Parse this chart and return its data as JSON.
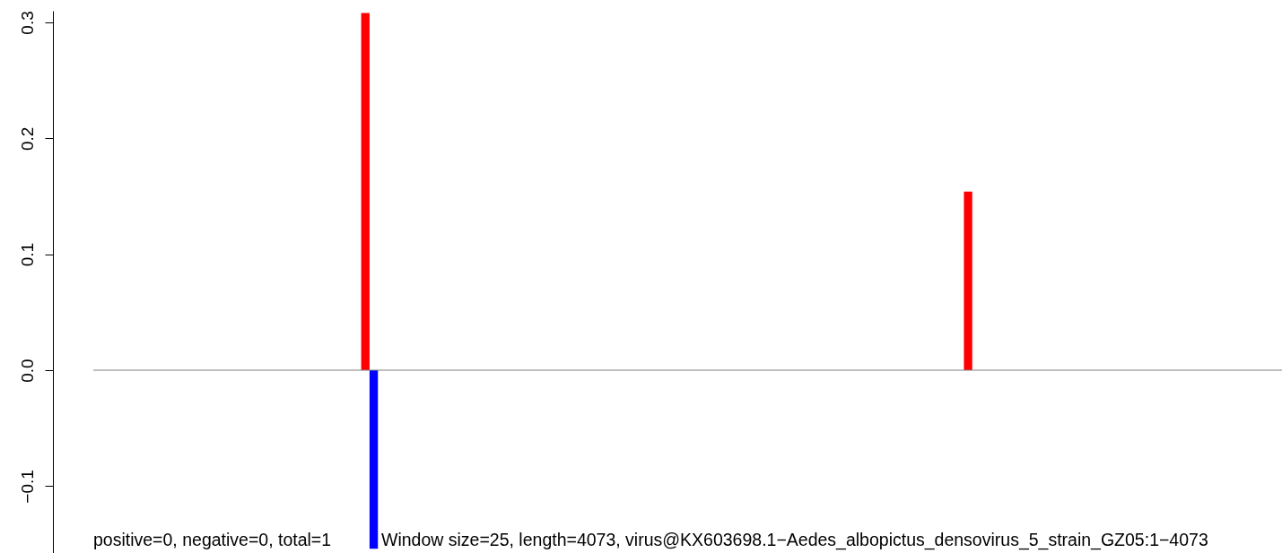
{
  "chart_data": {
    "type": "bar",
    "categories": [
      null,
      null,
      null,
      null,
      null,
      null,
      null,
      null,
      null,
      null,
      null,
      null,
      null,
      null,
      null,
      null,
      null,
      null,
      null,
      null,
      null,
      null,
      null,
      null,
      null,
      null,
      null,
      null,
      null,
      null,
      null,
      null,
      null,
      null,
      null,
      null,
      null,
      null,
      null,
      null,
      null,
      null,
      null,
      null,
      null,
      null,
      null,
      null,
      null,
      null,
      null,
      null,
      null,
      null,
      null,
      null,
      null,
      null,
      null,
      null,
      null,
      null,
      null,
      null,
      null,
      null,
      null,
      null,
      null,
      null,
      null,
      null,
      null,
      null,
      null,
      null,
      null,
      null,
      null,
      null,
      null,
      null,
      null,
      null,
      null,
      null,
      null,
      null,
      null,
      null,
      null,
      null,
      null,
      null,
      null,
      null,
      null,
      null,
      null,
      null,
      null,
      null,
      null,
      null,
      null,
      null,
      null,
      null,
      null,
      null,
      null,
      null,
      null,
      null,
      null,
      null,
      null,
      null,
      null,
      null,
      null,
      null,
      null,
      null,
      null,
      null,
      null,
      null,
      null,
      null,
      null,
      null,
      null,
      null,
      null,
      null,
      null,
      null,
      null,
      null,
      null,
      null
    ],
    "series": [
      {
        "color": "#ff0000",
        "values": [
          0,
          0,
          0,
          0,
          0,
          0,
          0,
          0,
          0,
          0,
          0,
          0,
          0,
          0,
          0,
          0,
          0,
          0,
          0,
          0,
          0,
          0,
          0,
          0,
          0,
          0,
          0,
          0,
          0,
          0,
          0,
          0,
          0.308,
          0,
          0,
          0,
          0,
          0,
          0,
          0,
          0,
          0,
          0,
          0,
          0,
          0,
          0,
          0,
          0,
          0,
          0,
          0,
          0,
          0,
          0,
          0,
          0,
          0,
          0,
          0,
          0,
          0,
          0,
          0,
          0,
          0,
          0,
          0,
          0,
          0,
          0,
          0,
          0,
          0,
          0,
          0,
          0,
          0,
          0,
          0,
          0,
          0,
          0,
          0,
          0,
          0,
          0,
          0,
          0,
          0,
          0,
          0,
          0,
          0,
          0,
          0,
          0,
          0,
          0,
          0,
          0,
          0,
          0,
          0,
          0.154,
          0,
          0,
          0,
          0,
          0,
          0,
          0,
          0,
          0,
          0,
          0,
          0,
          0,
          0,
          0,
          0,
          0,
          0,
          0,
          0,
          0,
          0,
          0,
          0,
          0,
          0,
          0,
          0,
          0,
          0,
          0,
          0,
          0,
          0,
          0,
          0,
          0
        ]
      },
      {
        "color": "#0000ff",
        "values": [
          0,
          0,
          0,
          0,
          0,
          0,
          0,
          0,
          0,
          0,
          0,
          0,
          0,
          0,
          0,
          0,
          0,
          0,
          0,
          0,
          0,
          0,
          0,
          0,
          0,
          0,
          0,
          0,
          0,
          0,
          0,
          0,
          0,
          -0.154,
          0,
          0,
          0,
          0,
          0,
          0,
          0,
          0,
          0,
          0,
          0,
          0,
          0,
          0,
          0,
          0,
          0,
          0,
          0,
          0,
          0,
          0,
          0,
          0,
          0,
          0,
          0,
          0,
          0,
          0,
          0,
          0,
          0,
          0,
          0,
          0,
          0,
          0,
          0,
          0,
          0,
          0,
          0,
          0,
          0,
          0,
          0,
          0,
          0,
          0,
          0,
          0,
          0,
          0,
          0,
          0,
          0,
          0,
          0,
          0,
          0,
          0,
          0,
          0,
          0,
          0,
          0,
          0,
          0,
          0,
          0,
          0,
          0,
          0,
          0,
          0,
          0,
          0,
          0,
          0,
          0,
          0,
          0,
          0,
          0,
          0,
          0,
          0,
          0,
          0,
          0,
          0,
          0,
          0,
          0,
          0,
          0,
          0,
          0,
          0,
          0,
          0,
          0,
          0,
          0,
          0,
          0,
          0
        ]
      }
    ],
    "ylim": [
      -0.16,
      0.31
    ],
    "yticks": [
      {
        "value": -0.1,
        "label": "−0.1"
      },
      {
        "value": 0,
        "label": "0.0"
      },
      {
        "value": 0.1,
        "label": "0.1"
      },
      {
        "value": 0.2,
        "label": "0.2"
      },
      {
        "value": 0.3,
        "label": "0.3"
      }
    ],
    "ref_lines": [
      {
        "axis": "y",
        "value": 0,
        "color": "#808080"
      }
    ],
    "tick_labels": "y",
    "annotations": [
      "positive=0, negative=0, total=1",
      "Window size=25, length=4073, virus@KX603698.1−Aedes_albopictus_densovirus_5_strain_GZ05:1−4073"
    ]
  }
}
